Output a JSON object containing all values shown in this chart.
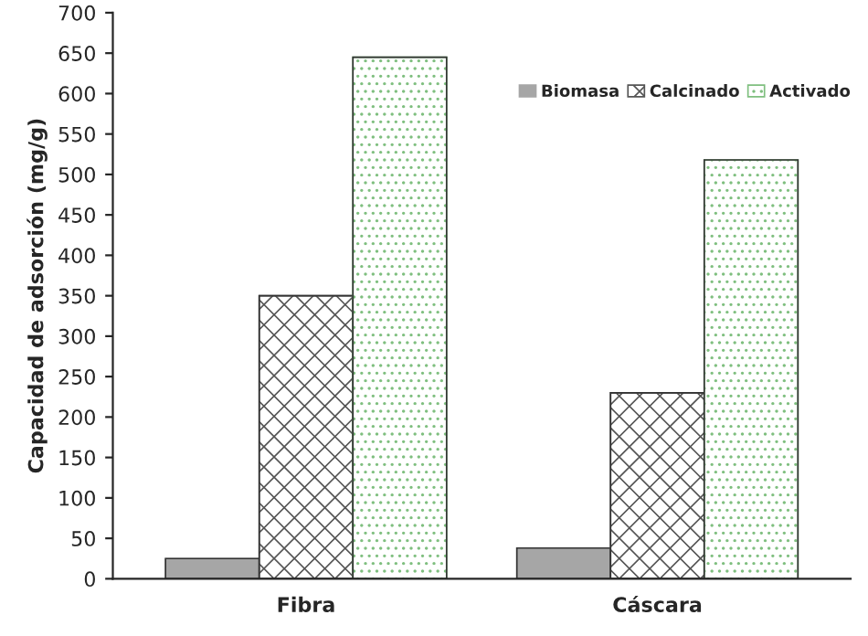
{
  "chart_data": {
    "type": "bar",
    "ylabel": "Capacidad de adsorción (mg/g)",
    "categories": [
      "Fibra",
      "Cáscara"
    ],
    "series": [
      {
        "name": "Biomasa",
        "color": "#a6a6a6",
        "values": [
          25,
          38
        ]
      },
      {
        "name": "Calcinado",
        "color": "#555555",
        "values": [
          350,
          230
        ]
      },
      {
        "name": "Activado",
        "color": "#7fbf7f",
        "values": [
          645,
          518
        ]
      }
    ],
    "ylim": [
      0,
      700
    ],
    "yticks": [
      0,
      50,
      100,
      150,
      200,
      250,
      300,
      350,
      400,
      450,
      500,
      550,
      600,
      650,
      700
    ],
    "grid": false,
    "legend": "top right"
  }
}
